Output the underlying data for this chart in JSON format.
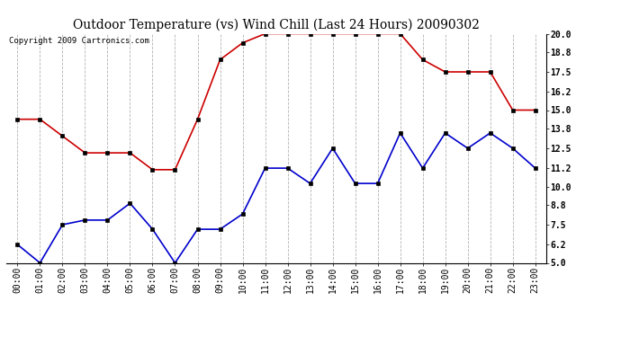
{
  "title": "Outdoor Temperature (vs) Wind Chill (Last 24 Hours) 20090302",
  "copyright": "Copyright 2009 Cartronics.com",
  "hours": [
    "00:00",
    "01:00",
    "02:00",
    "03:00",
    "04:00",
    "05:00",
    "06:00",
    "07:00",
    "08:00",
    "09:00",
    "10:00",
    "11:00",
    "12:00",
    "13:00",
    "14:00",
    "15:00",
    "16:00",
    "17:00",
    "18:00",
    "19:00",
    "20:00",
    "21:00",
    "22:00",
    "23:00"
  ],
  "temp": [
    14.4,
    14.4,
    13.3,
    12.2,
    12.2,
    12.2,
    11.1,
    11.1,
    14.4,
    18.3,
    19.4,
    20.0,
    20.0,
    20.0,
    20.0,
    20.0,
    20.0,
    20.0,
    18.3,
    17.5,
    17.5,
    17.5,
    15.0,
    15.0
  ],
  "wind_chill": [
    6.2,
    5.0,
    7.5,
    7.8,
    7.8,
    8.9,
    7.2,
    5.0,
    7.2,
    7.2,
    8.2,
    11.2,
    11.2,
    10.2,
    12.5,
    10.2,
    10.2,
    13.5,
    11.2,
    13.5,
    12.5,
    13.5,
    12.5,
    11.2
  ],
  "temp_color": "#cc0000",
  "wind_chill_color": "#0000cc",
  "ylim_min": 5.0,
  "ylim_max": 20.0,
  "yticks": [
    5.0,
    6.2,
    7.5,
    8.8,
    10.0,
    11.2,
    12.5,
    13.8,
    15.0,
    16.2,
    17.5,
    18.8,
    20.0
  ],
  "background_color": "#ffffff",
  "grid_color": "#aaaaaa",
  "title_fontsize": 10,
  "copyright_fontsize": 6.5,
  "tick_fontsize": 7
}
